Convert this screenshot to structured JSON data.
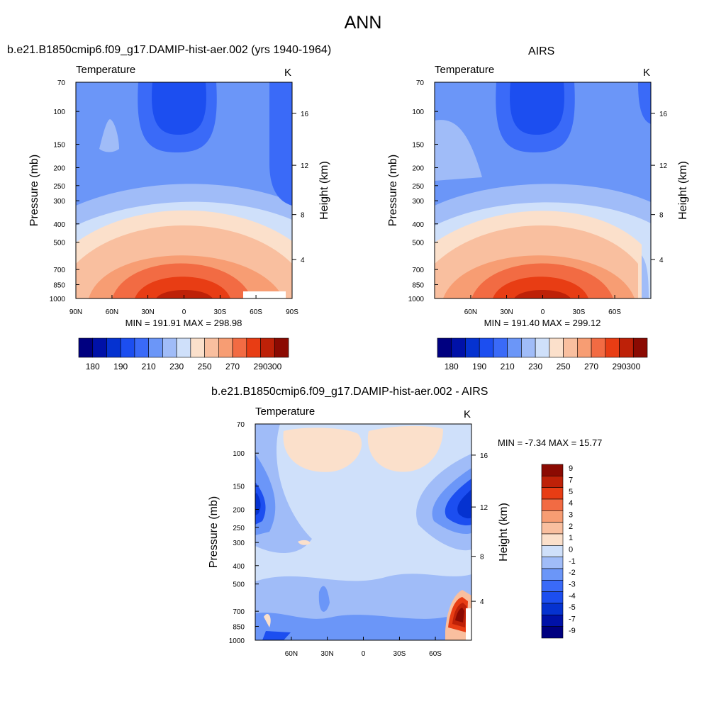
{
  "page_title": "ANN",
  "colors": {
    "diverging": [
      "#000080",
      "#0011a8",
      "#0532d0",
      "#1c4ef0",
      "#3a6af8",
      "#6b96f8",
      "#a0bcf8",
      "#cfe0fa",
      "#fbe0cb",
      "#f9bf9f",
      "#f79d73",
      "#f26b43",
      "#e83d14",
      "#be2108",
      "#8b0a02"
    ]
  },
  "panels": [
    {
      "title": "b.e21.B1850cmip6.f09_g17.DAMIP-hist-aer.002 (yrs 1940-1964)",
      "chart_data": {
        "type": "heatmap",
        "variable": "Temperature",
        "units": "K",
        "ylabel": "Pressure (mb)",
        "y2label": "Height (km)",
        "x_ticks": [
          "90N",
          "60N",
          "30N",
          "0",
          "30S",
          "60S",
          "90S"
        ],
        "y_ticks": [
          "70",
          "100",
          "150",
          "200",
          "250",
          "300",
          "400",
          "500",
          "700",
          "850",
          "1000"
        ],
        "y2_ticks": [
          "16",
          "12",
          "8",
          "4"
        ],
        "stats": "MIN = 191.91  MAX = 298.98",
        "colorbar_labels": [
          "180",
          "190",
          "210",
          "230",
          "250",
          "270",
          "290",
          "300"
        ],
        "grid": false
      }
    },
    {
      "title": "AIRS",
      "chart_data": {
        "type": "heatmap",
        "variable": "Temperature",
        "units": "K",
        "ylabel": "Pressure (mb)",
        "y2label": "Height (km)",
        "x_ticks": [
          "60N",
          "30N",
          "0",
          "30S",
          "60S"
        ],
        "y_ticks": [
          "70",
          "100",
          "150",
          "200",
          "250",
          "300",
          "400",
          "500",
          "700",
          "850",
          "1000"
        ],
        "y2_ticks": [
          "16",
          "12",
          "8",
          "4"
        ],
        "stats": "MIN = 191.40  MAX = 299.12",
        "colorbar_labels": [
          "180",
          "190",
          "210",
          "230",
          "250",
          "270",
          "290",
          "300"
        ],
        "grid": false
      }
    },
    {
      "title": "b.e21.B1850cmip6.f09_g17.DAMIP-hist-aer.002 - AIRS",
      "chart_data": {
        "type": "heatmap",
        "variable": "Temperature",
        "units": "K",
        "ylabel": "Pressure (mb)",
        "y2label": "Height (km)",
        "x_ticks": [
          "60N",
          "30N",
          "0",
          "30S",
          "60S"
        ],
        "y_ticks": [
          "70",
          "100",
          "150",
          "200",
          "250",
          "300",
          "400",
          "500",
          "700",
          "850",
          "1000"
        ],
        "y2_ticks": [
          "16",
          "12",
          "8",
          "4"
        ],
        "stats": "MIN =  -7.34  MAX =  15.77",
        "colorbar_labels": [
          "9",
          "7",
          "5",
          "4",
          "3",
          "2",
          "1",
          "0",
          "-1",
          "-2",
          "-3",
          "-4",
          "-5",
          "-7",
          "-9"
        ],
        "grid": false
      }
    }
  ]
}
